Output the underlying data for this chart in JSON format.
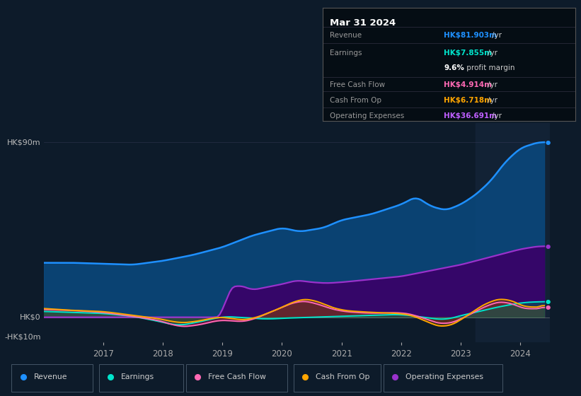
{
  "bg_color": "#0d1b2a",
  "title_box": {
    "title": "Mar 31 2024",
    "rows": [
      {
        "label": "Revenue",
        "value": "HK$81.903m",
        "unit": "/yr",
        "value_color": "#1e90ff"
      },
      {
        "label": "Earnings",
        "value": "HK$7.855m",
        "unit": "/yr",
        "value_color": "#00e5cc"
      },
      {
        "label": "",
        "value": "9.6%",
        "unit": " profit margin",
        "value_color": "#ffffff"
      },
      {
        "label": "Free Cash Flow",
        "value": "HK$4.914m",
        "unit": "/yr",
        "value_color": "#ff69b4"
      },
      {
        "label": "Cash From Op",
        "value": "HK$6.718m",
        "unit": "/yr",
        "value_color": "#ffa500"
      },
      {
        "label": "Operating Expenses",
        "value": "HK$36.691m",
        "unit": "/yr",
        "value_color": "#bf5fff"
      }
    ]
  },
  "series_colors": {
    "revenue": "#1e90ff",
    "earnings": "#00e5cc",
    "fcf": "#ff69b4",
    "cashop": "#ffa500",
    "opex": "#9932cc"
  },
  "legend": [
    {
      "label": "Revenue",
      "color": "#1e90ff"
    },
    {
      "label": "Earnings",
      "color": "#00e5cc"
    },
    {
      "label": "Free Cash Flow",
      "color": "#ff69b4"
    },
    {
      "label": "Cash From Op",
      "color": "#ffa500"
    },
    {
      "label": "Operating Expenses",
      "color": "#9932cc"
    }
  ],
  "xlim": [
    2016.0,
    2024.5
  ],
  "ylim": [
    -13,
    100
  ],
  "year_ticks": [
    2017,
    2018,
    2019,
    2020,
    2021,
    2022,
    2023,
    2024
  ],
  "vline_x": 2023.25
}
